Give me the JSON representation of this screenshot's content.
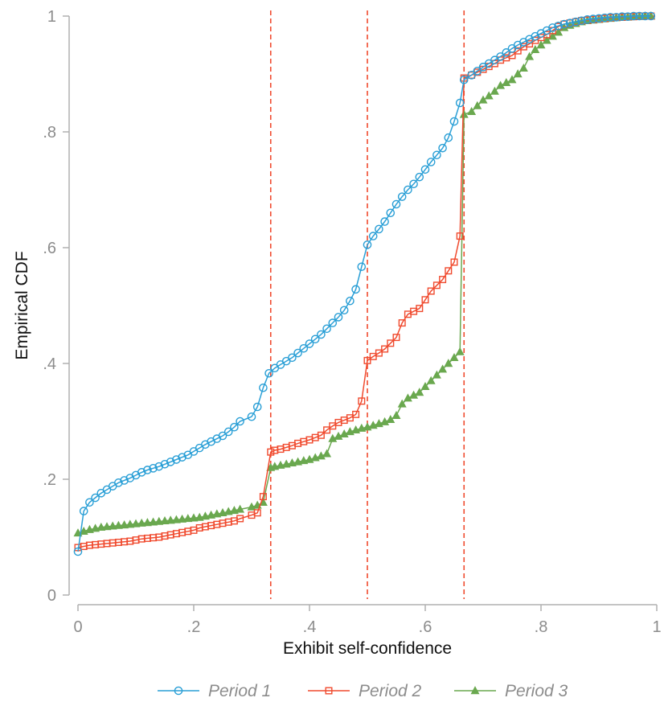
{
  "chart_data": {
    "type": "line",
    "title": "",
    "xlabel": "Exhibit self-confidence",
    "ylabel": "Empirical CDF",
    "xlim": [
      0,
      1
    ],
    "ylim": [
      0,
      1
    ],
    "x_ticks": [
      0,
      0.2,
      0.4,
      0.6,
      0.8,
      1
    ],
    "x_tick_labels": [
      "0",
      ".2",
      ".4",
      ".6",
      ".8",
      "1"
    ],
    "y_ticks": [
      0,
      0.2,
      0.4,
      0.6,
      0.8,
      1
    ],
    "y_tick_labels": [
      "0",
      ".2",
      ".4",
      ".6",
      ".8",
      "1"
    ],
    "grid": false,
    "legend_position": "bottom",
    "reference_lines": {
      "x": [
        0.333,
        0.5,
        0.667
      ],
      "color": "#f04a2e",
      "style": "dashed"
    },
    "series": [
      {
        "name": "Period 1",
        "color": "#2a9fd6",
        "marker": "circle",
        "x": [
          0.0,
          0.01,
          0.02,
          0.03,
          0.04,
          0.05,
          0.06,
          0.07,
          0.08,
          0.09,
          0.1,
          0.11,
          0.12,
          0.13,
          0.14,
          0.15,
          0.16,
          0.17,
          0.18,
          0.19,
          0.2,
          0.21,
          0.22,
          0.23,
          0.24,
          0.25,
          0.26,
          0.27,
          0.28,
          0.3,
          0.31,
          0.32,
          0.33,
          0.34,
          0.35,
          0.36,
          0.37,
          0.38,
          0.39,
          0.4,
          0.41,
          0.42,
          0.43,
          0.44,
          0.45,
          0.46,
          0.47,
          0.48,
          0.49,
          0.5,
          0.51,
          0.52,
          0.53,
          0.54,
          0.55,
          0.56,
          0.57,
          0.58,
          0.59,
          0.6,
          0.61,
          0.62,
          0.63,
          0.64,
          0.65,
          0.66,
          0.667,
          0.68,
          0.69,
          0.7,
          0.71,
          0.72,
          0.73,
          0.74,
          0.75,
          0.76,
          0.77,
          0.78,
          0.79,
          0.8,
          0.81,
          0.82,
          0.83,
          0.84,
          0.85,
          0.86,
          0.87,
          0.88,
          0.89,
          0.9,
          0.91,
          0.92,
          0.93,
          0.94,
          0.95,
          0.96,
          0.97,
          0.98,
          0.99
        ],
        "y": [
          0.075,
          0.145,
          0.16,
          0.168,
          0.176,
          0.182,
          0.188,
          0.194,
          0.198,
          0.202,
          0.207,
          0.212,
          0.216,
          0.219,
          0.222,
          0.226,
          0.23,
          0.234,
          0.238,
          0.242,
          0.248,
          0.254,
          0.26,
          0.265,
          0.27,
          0.275,
          0.282,
          0.29,
          0.3,
          0.308,
          0.325,
          0.358,
          0.383,
          0.392,
          0.398,
          0.404,
          0.41,
          0.418,
          0.426,
          0.434,
          0.442,
          0.45,
          0.46,
          0.47,
          0.48,
          0.492,
          0.508,
          0.528,
          0.567,
          0.605,
          0.62,
          0.632,
          0.645,
          0.66,
          0.675,
          0.688,
          0.7,
          0.71,
          0.722,
          0.735,
          0.748,
          0.76,
          0.772,
          0.79,
          0.818,
          0.85,
          0.89,
          0.898,
          0.905,
          0.912,
          0.918,
          0.924,
          0.93,
          0.937,
          0.944,
          0.95,
          0.955,
          0.96,
          0.965,
          0.97,
          0.975,
          0.98,
          0.983,
          0.986,
          0.988,
          0.99,
          0.992,
          0.994,
          0.995,
          0.996,
          0.997,
          0.998,
          0.998,
          0.999,
          0.999,
          1.0,
          1.0,
          1.0,
          1.0
        ]
      },
      {
        "name": "Period 2",
        "color": "#f04a2e",
        "marker": "square",
        "x": [
          0.0,
          0.01,
          0.02,
          0.03,
          0.04,
          0.05,
          0.06,
          0.07,
          0.08,
          0.09,
          0.1,
          0.11,
          0.12,
          0.13,
          0.14,
          0.15,
          0.16,
          0.17,
          0.18,
          0.19,
          0.2,
          0.21,
          0.22,
          0.23,
          0.24,
          0.25,
          0.26,
          0.27,
          0.28,
          0.3,
          0.31,
          0.32,
          0.333,
          0.34,
          0.35,
          0.36,
          0.37,
          0.38,
          0.39,
          0.4,
          0.41,
          0.42,
          0.43,
          0.44,
          0.45,
          0.46,
          0.47,
          0.48,
          0.49,
          0.5,
          0.51,
          0.52,
          0.53,
          0.54,
          0.55,
          0.56,
          0.57,
          0.58,
          0.59,
          0.6,
          0.61,
          0.62,
          0.63,
          0.64,
          0.65,
          0.66,
          0.667,
          0.68,
          0.69,
          0.7,
          0.71,
          0.72,
          0.73,
          0.74,
          0.75,
          0.76,
          0.77,
          0.78,
          0.79,
          0.8,
          0.81,
          0.82,
          0.83,
          0.84,
          0.85,
          0.86,
          0.87,
          0.88,
          0.89,
          0.9,
          0.91,
          0.92,
          0.93,
          0.94,
          0.95,
          0.96,
          0.97,
          0.98,
          0.99
        ],
        "y": [
          0.082,
          0.084,
          0.086,
          0.087,
          0.088,
          0.089,
          0.09,
          0.091,
          0.092,
          0.093,
          0.095,
          0.097,
          0.098,
          0.099,
          0.1,
          0.102,
          0.104,
          0.106,
          0.108,
          0.11,
          0.112,
          0.116,
          0.118,
          0.12,
          0.122,
          0.124,
          0.126,
          0.128,
          0.132,
          0.138,
          0.142,
          0.17,
          0.247,
          0.25,
          0.252,
          0.255,
          0.258,
          0.262,
          0.265,
          0.268,
          0.272,
          0.276,
          0.285,
          0.292,
          0.298,
          0.302,
          0.306,
          0.312,
          0.335,
          0.405,
          0.412,
          0.418,
          0.425,
          0.435,
          0.445,
          0.47,
          0.485,
          0.49,
          0.495,
          0.51,
          0.525,
          0.535,
          0.545,
          0.56,
          0.575,
          0.62,
          0.893,
          0.898,
          0.903,
          0.908,
          0.913,
          0.918,
          0.924,
          0.928,
          0.932,
          0.94,
          0.947,
          0.952,
          0.958,
          0.963,
          0.968,
          0.975,
          0.982,
          0.986,
          0.988,
          0.99,
          0.992,
          0.993,
          0.994,
          0.995,
          0.996,
          0.997,
          0.998,
          0.998,
          0.999,
          0.999,
          1.0,
          1.0,
          1.0
        ]
      },
      {
        "name": "Period 3",
        "color": "#6aa84f",
        "marker": "triangle",
        "x": [
          0.0,
          0.01,
          0.02,
          0.03,
          0.04,
          0.05,
          0.06,
          0.07,
          0.08,
          0.09,
          0.1,
          0.11,
          0.12,
          0.13,
          0.14,
          0.15,
          0.16,
          0.17,
          0.18,
          0.19,
          0.2,
          0.21,
          0.22,
          0.23,
          0.24,
          0.25,
          0.26,
          0.27,
          0.28,
          0.3,
          0.31,
          0.32,
          0.333,
          0.34,
          0.35,
          0.36,
          0.37,
          0.38,
          0.39,
          0.4,
          0.41,
          0.42,
          0.43,
          0.44,
          0.45,
          0.46,
          0.47,
          0.48,
          0.49,
          0.5,
          0.51,
          0.52,
          0.53,
          0.54,
          0.55,
          0.56,
          0.57,
          0.58,
          0.59,
          0.6,
          0.61,
          0.62,
          0.63,
          0.64,
          0.65,
          0.66,
          0.667,
          0.68,
          0.69,
          0.7,
          0.71,
          0.72,
          0.73,
          0.74,
          0.75,
          0.76,
          0.77,
          0.78,
          0.79,
          0.8,
          0.81,
          0.82,
          0.83,
          0.84,
          0.85,
          0.86,
          0.87,
          0.88,
          0.89,
          0.9,
          0.91,
          0.92,
          0.93,
          0.94,
          0.95,
          0.96,
          0.97,
          0.98,
          0.99
        ],
        "y": [
          0.107,
          0.11,
          0.113,
          0.115,
          0.117,
          0.118,
          0.119,
          0.12,
          0.121,
          0.122,
          0.123,
          0.124,
          0.125,
          0.126,
          0.127,
          0.128,
          0.129,
          0.13,
          0.131,
          0.132,
          0.133,
          0.134,
          0.136,
          0.138,
          0.14,
          0.142,
          0.144,
          0.146,
          0.148,
          0.152,
          0.155,
          0.16,
          0.22,
          0.222,
          0.224,
          0.226,
          0.228,
          0.23,
          0.232,
          0.234,
          0.237,
          0.24,
          0.244,
          0.27,
          0.274,
          0.278,
          0.282,
          0.285,
          0.288,
          0.29,
          0.293,
          0.296,
          0.299,
          0.303,
          0.31,
          0.33,
          0.34,
          0.345,
          0.35,
          0.36,
          0.37,
          0.38,
          0.39,
          0.4,
          0.41,
          0.42,
          0.83,
          0.835,
          0.845,
          0.855,
          0.862,
          0.87,
          0.88,
          0.885,
          0.89,
          0.9,
          0.91,
          0.93,
          0.942,
          0.95,
          0.958,
          0.965,
          0.972,
          0.98,
          0.984,
          0.987,
          0.99,
          0.992,
          0.993,
          0.994,
          0.995,
          0.996,
          0.997,
          0.998,
          0.998,
          0.999,
          0.999,
          1.0,
          1.0
        ]
      }
    ]
  }
}
